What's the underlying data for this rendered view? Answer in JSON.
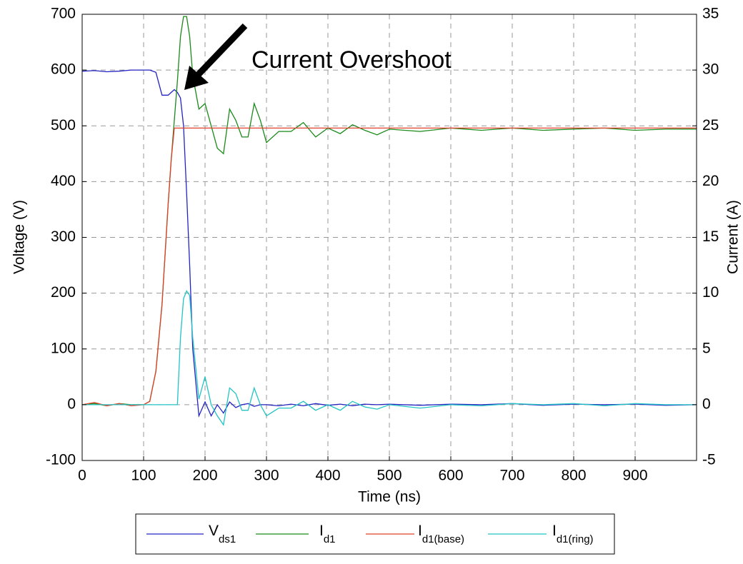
{
  "chart_data": {
    "type": "line",
    "annotation": "Current Overshoot",
    "xlabel": "Time (ns)",
    "ylabel": "Voltage (V)",
    "y2label": "Current (A)",
    "xlim": [
      0,
      1000
    ],
    "xticks": [
      0,
      100,
      200,
      300,
      400,
      500,
      600,
      700,
      800,
      900
    ],
    "ylim": [
      -100,
      700
    ],
    "yticks": [
      -100,
      0,
      100,
      200,
      300,
      400,
      500,
      600,
      700
    ],
    "y2lim": [
      -5,
      35
    ],
    "y2ticks": [
      -5,
      0,
      5,
      10,
      15,
      20,
      25,
      30,
      35
    ],
    "grid": true,
    "x": [
      0,
      20,
      40,
      60,
      80,
      100,
      110,
      120,
      130,
      140,
      145,
      150,
      155,
      160,
      165,
      170,
      175,
      180,
      190,
      200,
      210,
      220,
      230,
      240,
      250,
      260,
      270,
      280,
      290,
      300,
      320,
      340,
      360,
      380,
      400,
      420,
      440,
      460,
      480,
      500,
      550,
      600,
      650,
      700,
      750,
      800,
      850,
      900,
      950,
      1000
    ],
    "series": [
      {
        "name": "V",
        "name_sub": "ds1",
        "color": "#2323c3",
        "values": [
          598,
          599,
          597,
          598,
          600,
          600,
          600,
          596,
          555,
          555,
          560,
          565,
          560,
          550,
          500,
          380,
          250,
          100,
          -20,
          5,
          -20,
          0,
          -15,
          5,
          -5,
          0,
          2,
          -3,
          0,
          0,
          -2,
          1,
          -2,
          2,
          -1,
          1,
          -2,
          1,
          0,
          1,
          -1,
          1,
          0,
          2,
          -1,
          1,
          0,
          1,
          -1,
          0
        ]
      },
      {
        "name": "I",
        "name_sub": "d1",
        "color": "#1a8a1a",
        "axis": "y2",
        "values": [
          0,
          0.1,
          -0.1,
          0.1,
          0,
          0,
          0.3,
          3,
          9,
          18,
          22,
          25.5,
          29,
          33,
          34.8,
          34.8,
          33,
          29.5,
          26.5,
          27,
          25,
          23,
          22.5,
          26.5,
          25.5,
          24,
          24,
          27,
          25.5,
          23.5,
          24.5,
          24.5,
          25.3,
          24,
          24.8,
          24.3,
          25.1,
          24.6,
          24.2,
          24.7,
          24.5,
          24.8,
          24.6,
          24.8,
          24.6,
          24.7,
          24.8,
          24.6,
          24.7,
          24.7
        ]
      },
      {
        "name": "I",
        "name_sub": "d1(base)",
        "color": "#e0402a",
        "axis": "y2",
        "values": [
          0,
          0.2,
          -0.1,
          0.1,
          -0.1,
          0,
          0.3,
          3,
          9,
          18,
          22,
          24.8,
          24.8,
          24.8,
          24.8,
          24.8,
          24.8,
          24.8,
          24.8,
          24.8,
          24.8,
          24.8,
          24.8,
          24.8,
          24.8,
          24.8,
          24.8,
          24.8,
          24.8,
          24.8,
          24.8,
          24.8,
          24.8,
          24.8,
          24.8,
          24.8,
          24.8,
          24.8,
          24.8,
          24.8,
          24.8,
          24.8,
          24.8,
          24.8,
          24.8,
          24.8,
          24.8,
          24.8,
          24.8,
          24.8
        ]
      },
      {
        "name": "I",
        "name_sub": "d1(ring)",
        "color": "#22c4c4",
        "axis": "y2",
        "values": [
          0,
          0,
          0,
          0,
          0,
          0,
          0,
          0,
          0,
          0,
          0,
          0,
          0,
          6,
          9.5,
          10.2,
          9.8,
          6,
          0.5,
          2.5,
          0,
          -1,
          -1.8,
          1.5,
          1,
          -0.5,
          -0.5,
          1.5,
          0,
          -1,
          -0.3,
          -0.3,
          0.3,
          -0.5,
          0,
          -0.5,
          0.3,
          -0.2,
          -0.4,
          0,
          -0.3,
          0,
          -0.1,
          0.1,
          0,
          0.1,
          -0.1,
          0.1,
          0,
          0
        ]
      }
    ]
  }
}
